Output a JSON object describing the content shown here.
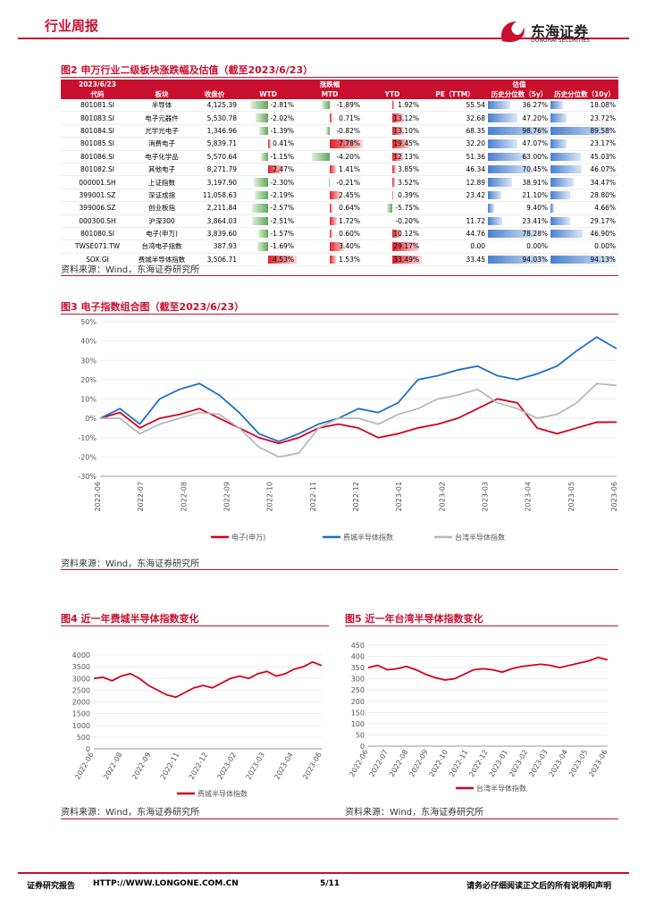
{
  "header": {
    "title": "行业周报",
    "logo": "东海证券",
    "logo_en": "DONGHAI SECURITIES"
  },
  "figure2": {
    "title": "图2 申万行业二级板块涨跌幅及估值（截至2023/6/23）",
    "top_header": [
      "2023/6/23",
      "涨跌幅",
      "估值"
    ],
    "columns": [
      "代码",
      "板块",
      "收盘价",
      "WTD",
      "MTD",
      "YTD",
      "PE（TTM）",
      "历史分位数（5y）",
      "历史分位数（10y）"
    ],
    "rows": [
      [
        "801081.SI",
        "半导体",
        "4,125.39",
        "-2.81%",
        "-1.89%",
        "1.92%",
        "55.54",
        "36.27%",
        "18.08%"
      ],
      [
        "801083.SI",
        "电子元器件",
        "5,530.78",
        "-2.02%",
        "0.71%",
        "13.12%",
        "32.68",
        "47.20%",
        "23.72%"
      ],
      [
        "801084.SI",
        "光学光电子",
        "1,346.96",
        "-1.39%",
        "-0.82%",
        "13.10%",
        "68.35",
        "98.76%",
        "89.58%"
      ],
      [
        "801085.SI",
        "消费电子",
        "5,839.71",
        "0.41%",
        "7.78%",
        "19.45%",
        "32.20",
        "47.07%",
        "23.17%"
      ],
      [
        "801086.SI",
        "电子化学品",
        "5,570.64",
        "-1.15%",
        "-4.20%",
        "12.13%",
        "51.36",
        "63.00%",
        "45.03%"
      ],
      [
        "801082.SI",
        "其他电子",
        "8,271.79",
        "2.47%",
        "1.41%",
        "3.85%",
        "46.34",
        "70.45%",
        "46.07%"
      ],
      [
        "000001.SH",
        "上证指数",
        "3,197.90",
        "-2.30%",
        "-0.21%",
        "3.52%",
        "12.89",
        "38.91%",
        "34.47%"
      ],
      [
        "399001.SZ",
        "深证成指",
        "11,058.63",
        "-2.19%",
        "2.45%",
        "0.39%",
        "23.42",
        "21.10%",
        "28.80%"
      ],
      [
        "399006.SZ",
        "创业板指",
        "2,211.84",
        "-2.57%",
        "0.64%",
        "-5.75%",
        null,
        "9.40%",
        "4.66%"
      ],
      [
        "000300.SH",
        "沪深300",
        "3,864.03",
        "-2.51%",
        "1.72%",
        "-0.20%",
        "11.72",
        "23.41%",
        "29.17%"
      ],
      [
        "801080.SI",
        "电子(申万)",
        "3,839.60",
        "-1.57%",
        "0.60%",
        "10.12%",
        "44.76",
        "78.28%",
        "46.90%"
      ],
      [
        "TWSE071.TW",
        "台湾电子指数",
        "387.93",
        "-1.69%",
        "3.40%",
        "29.17%",
        "0.00",
        "0.00%",
        "0.00%"
      ],
      [
        "SOX.GI",
        "费城半导体指数",
        "3,506.71",
        "4.53%",
        "1.53%",
        "33.49%",
        "33.45",
        "94.03%",
        "94.13%"
      ]
    ],
    "source": "资料来源：Wind，东海证券研究所"
  },
  "figure3": {
    "title": "图3 电子指数组合图（截至2023/6/23）",
    "type": "line",
    "x_labels": [
      "2022-06",
      "2022-07",
      "2022-08",
      "2022-09",
      "2022-10",
      "2022-11",
      "2022-12",
      "2023-01",
      "2023-02",
      "2023-03",
      "2023-04",
      "2023-05",
      "2023-06"
    ],
    "ylim": [
      -30,
      50
    ],
    "yticks": [
      {
        "value": -30,
        "label": "-30%"
      },
      {
        "value": -20,
        "label": "-20%"
      },
      {
        "value": -10,
        "label": "-10%"
      },
      {
        "value": 0,
        "label": "0%"
      },
      {
        "value": 10,
        "label": "10%"
      },
      {
        "value": 20,
        "label": "20%"
      },
      {
        "value": 30,
        "label": "30%"
      },
      {
        "value": 40,
        "label": "40%"
      },
      {
        "value": 50,
        "label": "50%"
      }
    ],
    "series": [
      {
        "name": "电子(申万)",
        "color": "#d6001c",
        "values": [
          0,
          3,
          -5,
          0,
          2,
          5,
          0,
          -5,
          -10,
          -13,
          -10,
          -5,
          -3,
          -5,
          -10,
          -8,
          -5,
          -3,
          0,
          5,
          10,
          8,
          -5,
          -8,
          -5,
          -2,
          -2
        ]
      },
      {
        "name": "费城半导体指数",
        "color": "#1f6fc5",
        "values": [
          0,
          5,
          -3,
          10,
          15,
          18,
          12,
          3,
          -8,
          -12,
          -8,
          -3,
          0,
          5,
          3,
          8,
          20,
          22,
          25,
          27,
          22,
          20,
          23,
          27,
          35,
          42,
          36
        ]
      },
      {
        "name": "台湾半导体指数",
        "color": "#b8b8b8",
        "values": [
          0,
          0,
          -8,
          -3,
          0,
          3,
          2,
          -5,
          -15,
          -20,
          -18,
          -5,
          0,
          0,
          -3,
          2,
          5,
          10,
          12,
          15,
          8,
          5,
          0,
          2,
          8,
          18,
          17
        ]
      }
    ],
    "source": "资料来源：Wind，东海证券研究所"
  },
  "figure4": {
    "title": "图4 近一年费城半导体指数变化",
    "type": "line",
    "x_labels": [
      "2022-06",
      "2022-08",
      "2022-09",
      "2022-11",
      "2022-12",
      "2023-02",
      "2023-03",
      "2023-04",
      "2023-06"
    ],
    "ylim": [
      0,
      4000
    ],
    "yticks": [
      0,
      500,
      1000,
      1500,
      2000,
      2500,
      3000,
      3500,
      4000
    ],
    "series": [
      {
        "name": "费城半导体指数",
        "color": "#d6001c",
        "values": [
          3000,
          3050,
          2900,
          3100,
          3200,
          3000,
          2700,
          2500,
          2300,
          2200,
          2400,
          2600,
          2700,
          2600,
          2800,
          3000,
          3100,
          3000,
          3200,
          3300,
          3100,
          3200,
          3400,
          3500,
          3700,
          3550
        ]
      }
    ],
    "source": "资料来源：Wind，东海证券研究所"
  },
  "figure5": {
    "title": "图5 近一年台湾半导体指数变化",
    "type": "line",
    "x_labels": [
      "2022-06",
      "2022-07",
      "2022-08",
      "2022-09",
      "2022-10",
      "2022-11",
      "2022-12",
      "2023-01",
      "2023-02",
      "2023-03",
      "2023-04",
      "2023-05",
      "2023-06"
    ],
    "ylim": [
      0,
      450
    ],
    "yticks": [
      0,
      50,
      100,
      150,
      200,
      250,
      300,
      350,
      400,
      450
    ],
    "series": [
      {
        "name": "台湾半导体指数",
        "color": "#d6001c",
        "values": [
          350,
          360,
          340,
          345,
          355,
          340,
          320,
          305,
          295,
          300,
          320,
          340,
          345,
          340,
          330,
          345,
          355,
          360,
          365,
          360,
          350,
          360,
          370,
          380,
          395,
          385
        ]
      }
    ],
    "source": "资料来源：Wind，东海证券研究所"
  },
  "footer": {
    "left": "证券研究报告",
    "url": "HTTP://WWW.LONGONE.COM.CN",
    "page": "5/11",
    "right": "请务必仔细阅读正文后的所有说明和声明"
  }
}
